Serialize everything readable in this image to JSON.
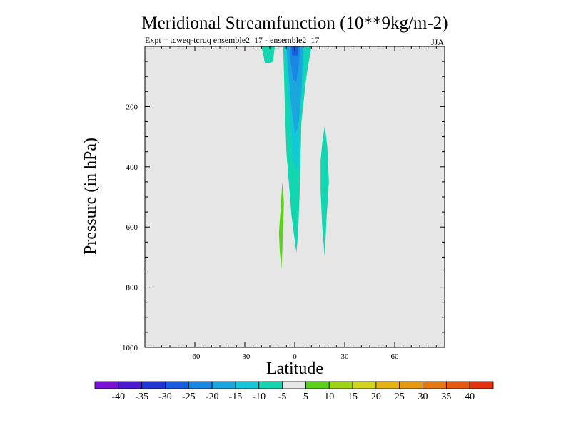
{
  "chart_data": {
    "type": "contour",
    "title": "Meridional Streamfunction (10**9kg/m-2)",
    "subtitle_left": "Expt = tcweq-tcruq ensemble2_17 - ensemble2_17",
    "subtitle_right": "JJA",
    "xlabel": "Latitude",
    "ylabel": "Pressure (in hPa)",
    "xlim": [
      -90,
      90
    ],
    "ylim": [
      1000,
      0
    ],
    "xticks": [
      -60,
      -30,
      0,
      30,
      60
    ],
    "yticks": [
      200,
      400,
      600,
      800,
      1000
    ],
    "background_color": "#e6e6e6",
    "colorbar": {
      "labels": [
        "-40",
        "-35",
        "-30",
        "-25",
        "-20",
        "-15",
        "-10",
        "-5",
        "5",
        "10",
        "15",
        "20",
        "25",
        "30",
        "35",
        "40"
      ],
      "colors": [
        "#7a10d8",
        "#4c19d6",
        "#2235d8",
        "#1a5ce0",
        "#1a88e3",
        "#1aa7dd",
        "#13c8d8",
        "#11d6b0",
        "#e6e6e6",
        "#5ad21a",
        "#9ed412",
        "#d0d41a",
        "#e4b414",
        "#e59a12",
        "#e57a12",
        "#e55a12",
        "#e23210"
      ]
    },
    "features": [
      {
        "name": "negative-band-lower",
        "level": -10,
        "color": "#11d6b0",
        "points": [
          [
            -13,
            0
          ],
          [
            10,
            0
          ],
          [
            7,
            100
          ],
          [
            4,
            250
          ],
          [
            3,
            480
          ],
          [
            2,
            620
          ],
          [
            1,
            685
          ],
          [
            -2,
            560
          ],
          [
            -5,
            350
          ],
          [
            -6,
            190
          ],
          [
            -6.5,
            80
          ],
          [
            -7,
            0
          ]
        ]
      },
      {
        "name": "negative-band-middle",
        "level": -15,
        "color": "#13c8d8",
        "points": [
          [
            -6,
            0
          ],
          [
            6,
            0
          ],
          [
            5,
            100
          ],
          [
            3,
            250
          ],
          [
            2,
            420
          ],
          [
            -1,
            380
          ],
          [
            -3,
            220
          ],
          [
            -4.5,
            100
          ]
        ]
      },
      {
        "name": "negative-band-upper",
        "level": -20,
        "color": "#1aa7dd",
        "points": [
          [
            -5,
            0
          ],
          [
            5,
            0
          ],
          [
            4,
            150
          ],
          [
            2,
            270
          ],
          [
            0,
            290
          ],
          [
            -2,
            200
          ],
          [
            -4,
            80
          ]
        ]
      },
      {
        "name": "negative-core",
        "level": -25,
        "color": "#1a88e3",
        "points": [
          [
            -3,
            0
          ],
          [
            3,
            0
          ],
          [
            2.5,
            60
          ],
          [
            1,
            120
          ],
          [
            -1,
            110
          ],
          [
            -2.5,
            50
          ]
        ]
      },
      {
        "name": "negative-core-deep",
        "level": -30,
        "color": "#1a5ce0",
        "points": [
          [
            -2,
            0
          ],
          [
            2,
            0
          ],
          [
            1.5,
            30
          ],
          [
            -1.5,
            30
          ]
        ]
      },
      {
        "name": "negative-blob-topleft",
        "level": -10,
        "color": "#11d6b0",
        "points": [
          [
            -20,
            0
          ],
          [
            -12,
            0
          ],
          [
            -12.5,
            25
          ],
          [
            -13,
            50
          ],
          [
            -15.5,
            55
          ],
          [
            -18,
            55
          ],
          [
            -19,
            25
          ]
        ]
      },
      {
        "name": "negative-streak-right",
        "level": -10,
        "color": "#11d6b0",
        "points": [
          [
            18,
            265
          ],
          [
            19.5,
            330
          ],
          [
            20.5,
            450
          ],
          [
            19,
            580
          ],
          [
            18,
            700
          ],
          [
            16.5,
            600
          ],
          [
            15.5,
            480
          ],
          [
            15.5,
            380
          ],
          [
            16.5,
            320
          ]
        ]
      },
      {
        "name": "positive-streak-left",
        "level": 5,
        "color": "#5ad21a",
        "points": [
          [
            -7.5,
            450
          ],
          [
            -6.5,
            520
          ],
          [
            -7,
            600
          ],
          [
            -7.5,
            680
          ],
          [
            -8,
            740
          ],
          [
            -9,
            680
          ],
          [
            -9.5,
            620
          ],
          [
            -8.5,
            540
          ]
        ]
      }
    ]
  }
}
